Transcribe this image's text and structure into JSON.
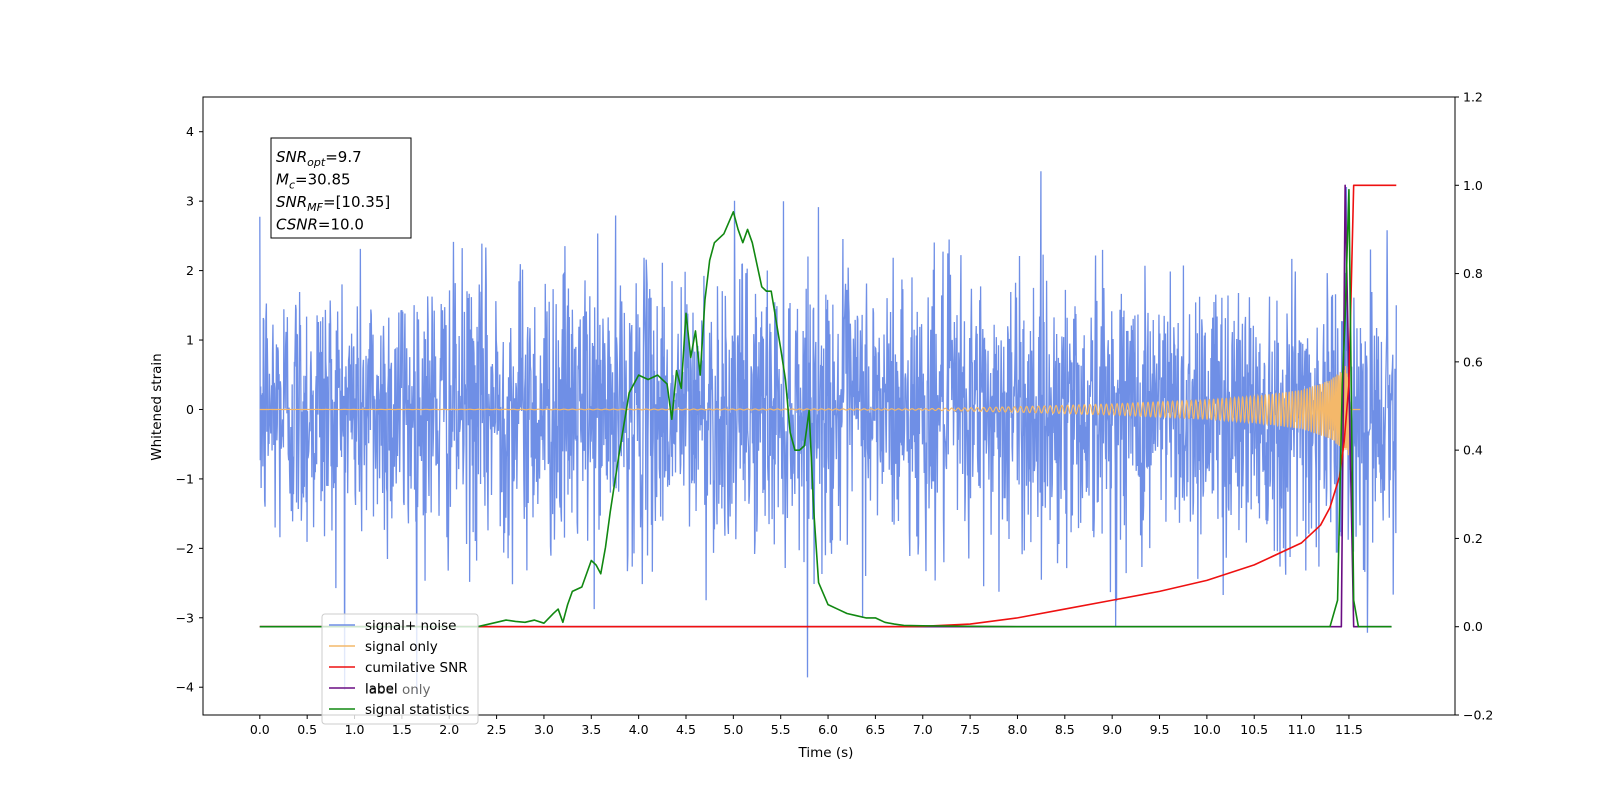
{
  "chart_data": {
    "type": "line",
    "xlabel": "Time (s)",
    "ylabel_left": "Whitened strain",
    "ylabel_right": "",
    "xlim": [
      -0.6,
      12.62
    ],
    "ylim_left": [
      -4.4,
      4.5
    ],
    "ylim_right": [
      -0.2,
      1.2
    ],
    "x_ticks": [
      0.0,
      0.5,
      1.0,
      1.5,
      2.0,
      2.5,
      3.0,
      3.5,
      4.0,
      4.5,
      5.0,
      5.5,
      6.0,
      6.5,
      7.0,
      7.5,
      8.0,
      8.5,
      9.0,
      9.5,
      10.0,
      10.5,
      11.0,
      11.5
    ],
    "x_tick_labels": [
      "0.0",
      "0.5",
      "1.0",
      "1.5",
      "2.0",
      "2.5",
      "3.0",
      "3.5",
      "4.0",
      "4.5",
      "5.0",
      "5.5",
      "6.0",
      "6.5",
      "7.0",
      "7.5",
      "8.0",
      "8.5",
      "9.0",
      "9.5",
      "10.0",
      "10.5",
      "11.0",
      "11.5"
    ],
    "y_left_ticks": [
      -4,
      -3,
      -2,
      -1,
      0,
      1,
      2,
      3,
      4
    ],
    "y_left_tick_labels": [
      "−4",
      "−3",
      "−2",
      "−1",
      "0",
      "1",
      "2",
      "3",
      "4"
    ],
    "y_right_ticks": [
      -0.2,
      0.0,
      0.2,
      0.4,
      0.6,
      0.8,
      1.0,
      1.2
    ],
    "y_right_tick_labels": [
      "−0.2",
      "0.0",
      "0.2",
      "0.4",
      "0.6",
      "0.8",
      "1.0",
      "1.2"
    ],
    "legend_position": "lower-left",
    "series": [
      {
        "name": "signal+ noise",
        "axis": "left",
        "color": "#6f8fe6",
        "generated": "gaussian-noise",
        "x_range": [
          0.0,
          12.0
        ],
        "spread": 1.0,
        "peak_abs": 4.1
      },
      {
        "name": "signal only",
        "axis": "left",
        "color": "#f4b86a",
        "generated": "chirp",
        "x_range": [
          0.0,
          11.62
        ],
        "merger_time": 11.5,
        "amplitude_points": [
          [
            0.0,
            0.0
          ],
          [
            7.0,
            0.01
          ],
          [
            8.0,
            0.04
          ],
          [
            9.0,
            0.08
          ],
          [
            10.0,
            0.14
          ],
          [
            10.5,
            0.19
          ],
          [
            11.0,
            0.28
          ],
          [
            11.3,
            0.42
          ],
          [
            11.45,
            0.6
          ],
          [
            11.5,
            0.7
          ]
        ]
      },
      {
        "name": "cumilative SNR",
        "axis": "right",
        "color": "#ee1111",
        "x": [
          0.0,
          6.8,
          7.0,
          7.5,
          8.0,
          8.5,
          9.0,
          9.5,
          10.0,
          10.5,
          11.0,
          11.2,
          11.3,
          11.4,
          11.45,
          11.5,
          11.55,
          12.0
        ],
        "y": [
          0.0,
          0.0,
          0.001,
          0.006,
          0.02,
          0.04,
          0.06,
          0.08,
          0.105,
          0.14,
          0.19,
          0.23,
          0.27,
          0.34,
          0.42,
          0.55,
          1.0,
          1.0
        ]
      },
      {
        "name": "label",
        "axis": "right",
        "color": "#6a0d83",
        "x": [
          0.0,
          11.42,
          11.46,
          11.55,
          11.95
        ],
        "y": [
          0.0,
          0.0,
          1.0,
          0.0,
          0.0
        ]
      },
      {
        "name": "label only",
        "axis": "right",
        "color": "#6a0d83",
        "x": [],
        "y": []
      },
      {
        "name": "signal statistics",
        "axis": "right",
        "color": "#118811",
        "x": [
          0.0,
          2.3,
          2.5,
          2.6,
          2.7,
          2.8,
          2.9,
          3.0,
          3.1,
          3.15,
          3.2,
          3.25,
          3.3,
          3.4,
          3.5,
          3.55,
          3.6,
          3.65,
          3.7,
          3.8,
          3.9,
          4.0,
          4.1,
          4.2,
          4.3,
          4.35,
          4.4,
          4.45,
          4.5,
          4.55,
          4.6,
          4.65,
          4.7,
          4.75,
          4.8,
          4.9,
          5.0,
          5.05,
          5.1,
          5.15,
          5.2,
          5.3,
          5.35,
          5.4,
          5.5,
          5.55,
          5.6,
          5.65,
          5.7,
          5.75,
          5.8,
          5.85,
          5.9,
          6.0,
          6.1,
          6.2,
          6.3,
          6.4,
          6.5,
          6.6,
          6.7,
          6.8,
          7.0,
          7.5,
          8.0,
          8.5,
          11.3,
          11.38,
          11.43,
          11.46,
          11.5,
          11.55,
          11.6,
          11.7,
          11.95
        ],
        "y": [
          0.0,
          0.0,
          0.01,
          0.015,
          0.012,
          0.01,
          0.015,
          0.008,
          0.03,
          0.04,
          0.01,
          0.05,
          0.08,
          0.09,
          0.15,
          0.14,
          0.12,
          0.18,
          0.26,
          0.4,
          0.53,
          0.57,
          0.56,
          0.57,
          0.55,
          0.47,
          0.58,
          0.54,
          0.71,
          0.61,
          0.67,
          0.57,
          0.74,
          0.83,
          0.87,
          0.89,
          0.94,
          0.9,
          0.87,
          0.9,
          0.87,
          0.77,
          0.76,
          0.76,
          0.63,
          0.56,
          0.44,
          0.4,
          0.4,
          0.41,
          0.49,
          0.26,
          0.1,
          0.05,
          0.04,
          0.03,
          0.025,
          0.02,
          0.02,
          0.01,
          0.006,
          0.003,
          0.002,
          0.001,
          0.0,
          0.0,
          0.0,
          0.06,
          0.55,
          0.7,
          0.99,
          0.06,
          0.0,
          0.0,
          0.0
        ]
      }
    ],
    "annotation": {
      "lines": [
        {
          "prefix": "SNR",
          "sub": "opt",
          "suffix": "=9.7"
        },
        {
          "prefix": "M",
          "sub": "c",
          "suffix": "=30.85"
        },
        {
          "prefix": "SNR",
          "sub": "MF",
          "suffix": "=[10.35]"
        },
        {
          "prefix": "CSNR",
          "sub": "",
          "suffix": "=10.0"
        }
      ]
    }
  }
}
